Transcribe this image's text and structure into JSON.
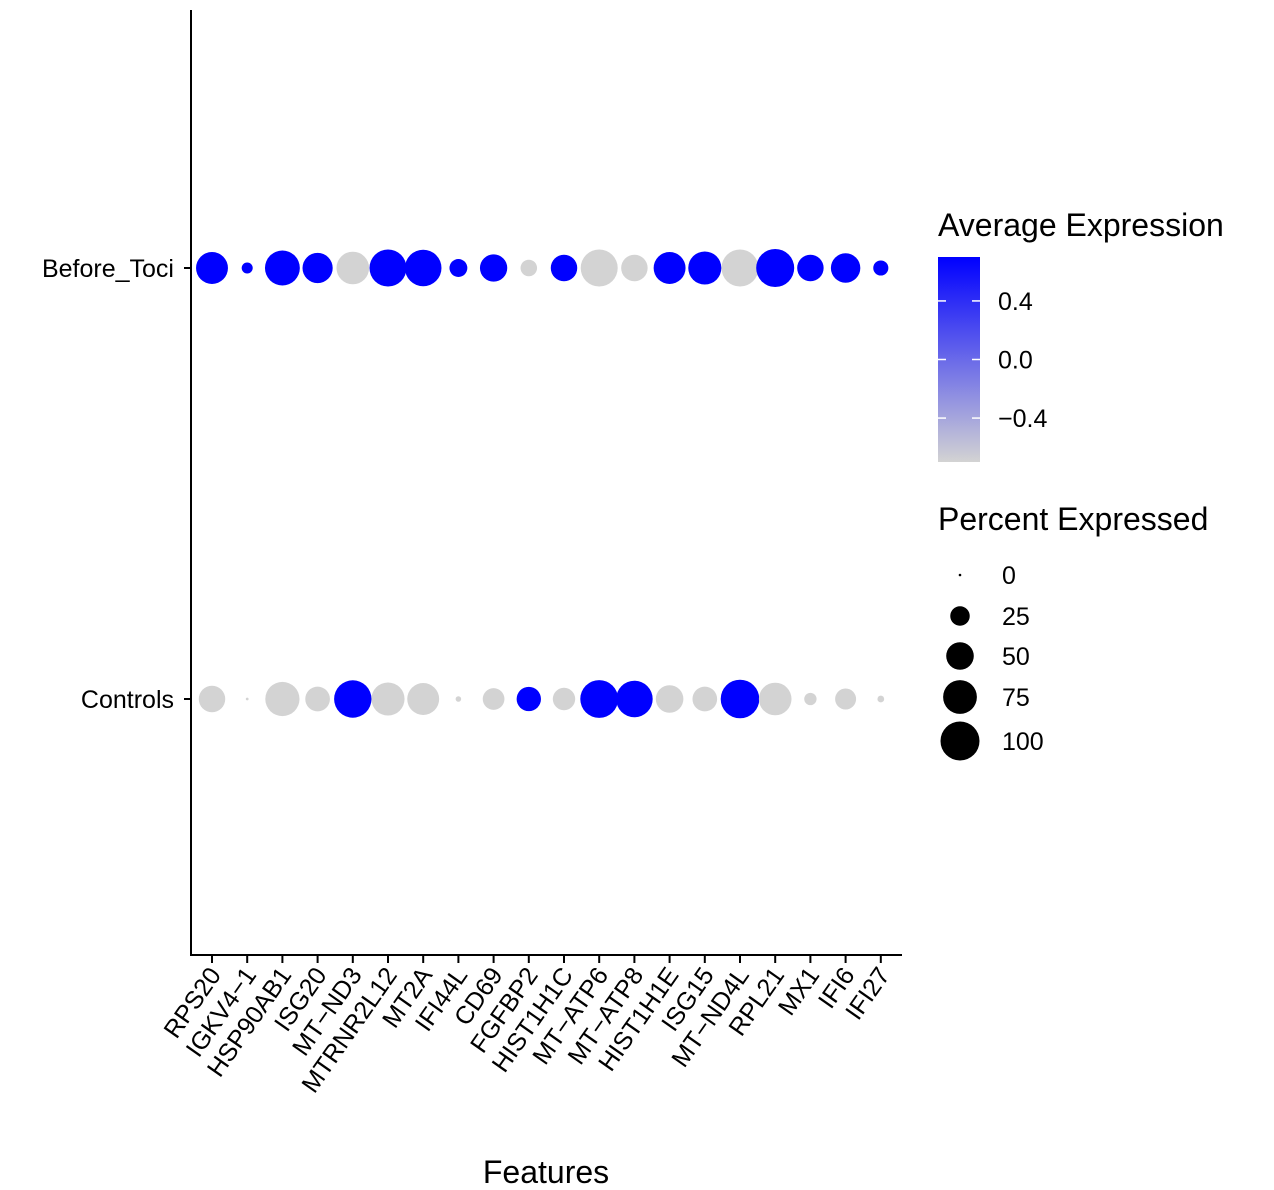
{
  "chart_data": {
    "type": "dotplot",
    "title": "",
    "xlabel": "Features",
    "ylabel": "",
    "features": [
      "RPS20",
      "IGKV4−1",
      "HSP90AB1",
      "ISG20",
      "MT−ND3",
      "MTRNR2L12",
      "MT2A",
      "IFI44L",
      "CD69",
      "FGFBP2",
      "HIST1H1C",
      "MT−ATP6",
      "MT−ATP8",
      "HIST1H1E",
      "ISG15",
      "MT−ND4L",
      "RPL21",
      "MX1",
      "IFI6",
      "IFI27"
    ],
    "groups": [
      "Before_Toci",
      "Controls"
    ],
    "series": [
      {
        "group": "Before_Toci",
        "avg_expression": [
          0.7,
          0.7,
          0.7,
          0.7,
          -0.7,
          0.7,
          0.7,
          0.7,
          0.7,
          -0.7,
          0.7,
          -0.7,
          -0.7,
          0.7,
          0.7,
          -0.7,
          0.7,
          0.7,
          0.7,
          0.7
        ],
        "pct_expressed": [
          67,
          8,
          80,
          60,
          70,
          90,
          88,
          21,
          49,
          18,
          46,
          90,
          46,
          67,
          72,
          90,
          95,
          46,
          57,
          15
        ]
      },
      {
        "group": "Controls",
        "avg_expression": [
          -0.7,
          -0.7,
          -0.7,
          -0.7,
          0.7,
          -0.7,
          -0.7,
          -0.7,
          -0.7,
          0.7,
          -0.7,
          0.7,
          0.7,
          -0.7,
          -0.7,
          0.7,
          -0.7,
          -0.7,
          -0.7,
          -0.7
        ],
        "pct_expressed": [
          46,
          0.5,
          77,
          40,
          92,
          72,
          67,
          2,
          31,
          39,
          33,
          94,
          88,
          50,
          40,
          98,
          70,
          10,
          29,
          3
        ]
      }
    ],
    "color_legend": {
      "title": "Average Expression",
      "ticks": [
        0.4,
        0.0,
        -0.4
      ],
      "tick_labels": [
        "0.4",
        "0.0",
        "−0.4"
      ],
      "range": [
        -0.7,
        0.7
      ],
      "low_color": "#d3d3d3",
      "high_color": "#0000ff"
    },
    "size_legend": {
      "title": "Percent Expressed",
      "values": [
        0,
        25,
        50,
        75,
        100
      ],
      "labels": [
        "0",
        "25",
        "50",
        "75",
        "100"
      ]
    },
    "grid": false,
    "legend_position": "right"
  }
}
